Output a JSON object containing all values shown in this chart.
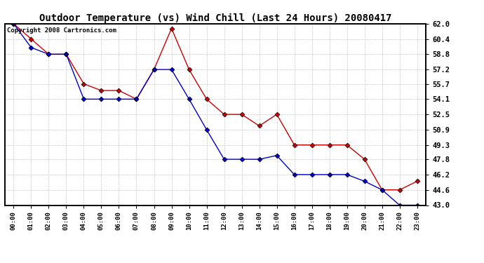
{
  "title": "Outdoor Temperature (vs) Wind Chill (Last 24 Hours) 20080417",
  "copyright": "Copyright 2008 Cartronics.com",
  "x_labels": [
    "00:00",
    "01:00",
    "02:00",
    "03:00",
    "04:00",
    "05:00",
    "06:00",
    "07:00",
    "08:00",
    "09:00",
    "10:00",
    "11:00",
    "12:00",
    "13:00",
    "14:00",
    "15:00",
    "16:00",
    "17:00",
    "18:00",
    "19:00",
    "20:00",
    "21:00",
    "22:00",
    "23:00"
  ],
  "temp_data": [
    62.0,
    60.4,
    58.8,
    58.8,
    55.7,
    55.0,
    55.0,
    54.1,
    57.2,
    61.5,
    57.2,
    54.1,
    52.5,
    52.5,
    51.3,
    52.5,
    49.3,
    49.3,
    49.3,
    49.3,
    47.8,
    44.6,
    44.6,
    45.5
  ],
  "wind_chill_data": [
    62.0,
    59.5,
    58.8,
    58.8,
    54.1,
    54.1,
    54.1,
    54.1,
    57.2,
    57.2,
    54.1,
    50.9,
    47.8,
    47.8,
    47.8,
    48.2,
    46.2,
    46.2,
    46.2,
    46.2,
    45.5,
    44.6,
    43.0,
    43.0
  ],
  "ylim_min": 43.0,
  "ylim_max": 62.0,
  "yticks": [
    43.0,
    44.6,
    46.2,
    47.8,
    49.3,
    50.9,
    52.5,
    54.1,
    55.7,
    57.2,
    58.8,
    60.4,
    62.0
  ],
  "temp_color": "#cc0000",
  "wind_chill_color": "#0000cc",
  "bg_color": "#ffffff",
  "grid_color": "#bbbbbb",
  "title_fontsize": 10,
  "copyright_fontsize": 6.5
}
